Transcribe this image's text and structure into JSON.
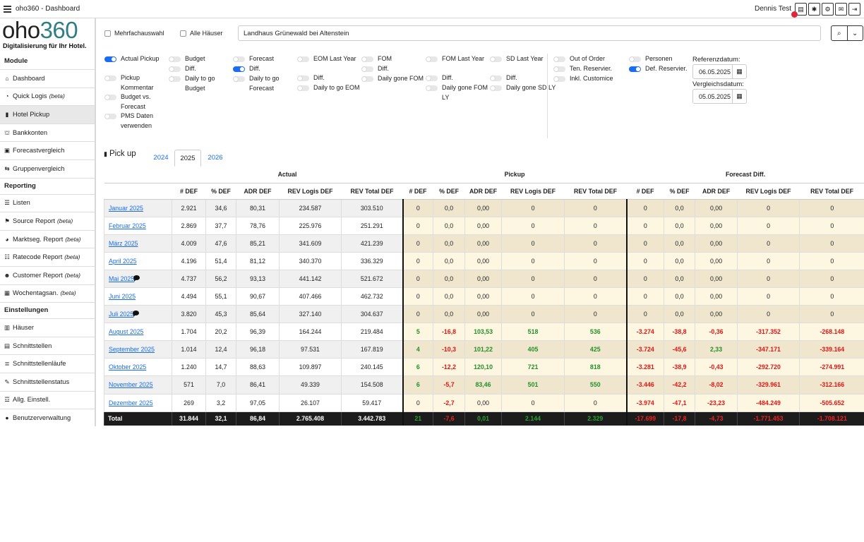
{
  "app": {
    "title": "oho360 - Dashboard",
    "user": "Dennis Test"
  },
  "logo": {
    "word_a": "oho",
    "word_b": "360",
    "tagline": "Digitalisierung für Ihr Hotel."
  },
  "sidebar": {
    "groups": [
      {
        "label": "Module",
        "items": [
          {
            "label": "Dashboard",
            "icon": "home-icon",
            "glyph": "⌂"
          },
          {
            "label": "Quick Logis",
            "beta": "(beta)",
            "icon": "speedometer-icon",
            "glyph": "◔"
          },
          {
            "label": "Hotel Pickup",
            "icon": "bar-chart-icon",
            "glyph": "▮",
            "active": true
          },
          {
            "label": "Bankkonten",
            "icon": "bank-icon",
            "glyph": "⛫"
          },
          {
            "label": "Forecastvergleich",
            "icon": "compare-icon",
            "glyph": "▣"
          },
          {
            "label": "Gruppenvergleich",
            "icon": "group-compare-icon",
            "glyph": "⇆"
          }
        ]
      },
      {
        "label": "Reporting",
        "items": [
          {
            "label": "Listen",
            "icon": "list-icon",
            "glyph": "☰"
          },
          {
            "label": "Source Report",
            "beta": "(beta)",
            "icon": "flag-icon",
            "glyph": "⚑"
          },
          {
            "label": "Marktseg. Report",
            "beta": "(beta)",
            "icon": "pie-icon",
            "glyph": "◕"
          },
          {
            "label": "Ratecode Report",
            "beta": "(beta)",
            "icon": "sliders-icon",
            "glyph": "☷"
          },
          {
            "label": "Customer Report",
            "beta": "(beta)",
            "icon": "customer-icon",
            "glyph": "☻"
          },
          {
            "label": "Wochentagsan.",
            "beta": "(beta)",
            "icon": "calendar-week-icon",
            "glyph": "▦"
          }
        ]
      },
      {
        "label": "Einstellungen",
        "items": [
          {
            "label": "Häuser",
            "icon": "building-icon",
            "glyph": "▥"
          },
          {
            "label": "Schnittstellen",
            "icon": "interfaces-icon",
            "glyph": "▤"
          },
          {
            "label": "Schnittstellenläufe",
            "icon": "stack-icon",
            "glyph": "≣"
          },
          {
            "label": "Schnittstellenstatus",
            "icon": "wrench-icon",
            "glyph": "✎"
          },
          {
            "label": "Allg. Einstell.",
            "icon": "settings-list-icon",
            "glyph": "☲"
          },
          {
            "label": "Benutzerverwaltung",
            "icon": "user-icon",
            "glyph": "●"
          }
        ]
      }
    ]
  },
  "filters": {
    "multi_select_label": "Mehrfachauswahl",
    "all_houses_label": "Alle Häuser",
    "hotel": "Landhaus Grünewald bei Altenstein"
  },
  "options": [
    {
      "label": "Actual Pickup",
      "on": true
    },
    {
      "label": "Pickup Kommentar",
      "on": false
    },
    {
      "label": "Budget vs. Forecast",
      "on": false
    },
    {
      "label": "PMS Daten verwenden",
      "on": false
    },
    {
      "label": "Budget",
      "on": false
    },
    {
      "label": "Diff.",
      "on": false
    },
    {
      "label": "Daily to go Budget",
      "on": false
    },
    {
      "label": "Forecast",
      "on": false
    },
    {
      "label": "Diff.",
      "on": true
    },
    {
      "label": "Daily to go Forecast",
      "on": false
    },
    {
      "label": "EOM Last Year",
      "on": false
    },
    {
      "label": "Diff.",
      "on": false
    },
    {
      "label": "Daily to go EOM",
      "on": false
    },
    {
      "label": "FOM",
      "on": false
    },
    {
      "label": "Diff.",
      "on": false
    },
    {
      "label": "Daily gone FOM",
      "on": false
    },
    {
      "label": "FOM Last Year",
      "on": false
    },
    {
      "label": "Diff.",
      "on": false
    },
    {
      "label": "Daily gone FOM LY",
      "on": false
    },
    {
      "label": "SD Last Year",
      "on": false
    },
    {
      "label": "Diff.",
      "on": false
    },
    {
      "label": "Daily gone SD LY",
      "on": false
    },
    {
      "label": "Out of Order",
      "on": false
    },
    {
      "label": "Ten. Reservier.",
      "on": false
    },
    {
      "label": "Inkl. Customice",
      "on": false
    },
    {
      "label": "Personen",
      "on": false
    },
    {
      "label": "Def. Reservier.",
      "on": true
    }
  ],
  "dates": {
    "ref_label": "Referenzdatum:",
    "ref_value": "06.05.2025",
    "cmp_label": "Vergleichsdatum:",
    "cmp_value": "05.05.2025"
  },
  "section": {
    "title": "Pick up",
    "tabs": [
      "2024",
      "2025",
      "2026"
    ],
    "active_tab": "2025"
  },
  "table": {
    "groups": [
      "Actual",
      "Pickup",
      "Forecast Diff."
    ],
    "columns": [
      "# DEF",
      "% DEF",
      "ADR DEF",
      "REV Logis DEF",
      "REV Total DEF"
    ],
    "rows": [
      {
        "month": "Januar 2025",
        "comment": false,
        "actual": [
          "2.921",
          "34,6",
          "80,31",
          "234.587",
          "303.510"
        ],
        "pickup": [
          "0",
          "0,0",
          "0,00",
          "0",
          "0"
        ],
        "fdiff": [
          "0",
          "0,0",
          "0,00",
          "0",
          "0"
        ]
      },
      {
        "month": "Februar 2025",
        "comment": false,
        "actual": [
          "2.869",
          "37,7",
          "78,76",
          "225.976",
          "251.291"
        ],
        "pickup": [
          "0",
          "0,0",
          "0,00",
          "0",
          "0"
        ],
        "fdiff": [
          "0",
          "0,0",
          "0,00",
          "0",
          "0"
        ]
      },
      {
        "month": "März 2025",
        "comment": false,
        "actual": [
          "4.009",
          "47,6",
          "85,21",
          "341.609",
          "421.239"
        ],
        "pickup": [
          "0",
          "0,0",
          "0,00",
          "0",
          "0"
        ],
        "fdiff": [
          "0",
          "0,0",
          "0,00",
          "0",
          "0"
        ]
      },
      {
        "month": "April 2025",
        "comment": false,
        "actual": [
          "4.196",
          "51,4",
          "81,12",
          "340.370",
          "336.329"
        ],
        "pickup": [
          "0",
          "0,0",
          "0,00",
          "0",
          "0"
        ],
        "fdiff": [
          "0",
          "0,0",
          "0,00",
          "0",
          "0"
        ]
      },
      {
        "month": "Mai 2025",
        "comment": true,
        "actual": [
          "4.737",
          "56,2",
          "93,13",
          "441.142",
          "521.672"
        ],
        "pickup": [
          "0",
          "0,0",
          "0,00",
          "0",
          "0"
        ],
        "fdiff": [
          "0",
          "0,0",
          "0,00",
          "0",
          "0"
        ]
      },
      {
        "month": "Juni 2025",
        "comment": false,
        "actual": [
          "4.494",
          "55,1",
          "90,67",
          "407.466",
          "462.732"
        ],
        "pickup": [
          "0",
          "0,0",
          "0,00",
          "0",
          "0"
        ],
        "fdiff": [
          "0",
          "0,0",
          "0,00",
          "0",
          "0"
        ]
      },
      {
        "month": "Juli 2025",
        "comment": true,
        "actual": [
          "3.820",
          "45,3",
          "85,64",
          "327.140",
          "304.637"
        ],
        "pickup": [
          "0",
          "0,0",
          "0,00",
          "0",
          "0"
        ],
        "fdiff": [
          "0",
          "0,0",
          "0,00",
          "0",
          "0"
        ]
      },
      {
        "month": "August 2025",
        "comment": false,
        "actual": [
          "1.704",
          "20,2",
          "96,39",
          "164.244",
          "219.484"
        ],
        "pickup": [
          "5",
          "-16,8",
          "103,53",
          "518",
          "536"
        ],
        "fdiff": [
          "-3.274",
          "-38,8",
          "-0,36",
          "-317.352",
          "-268.148"
        ]
      },
      {
        "month": "September 2025",
        "comment": false,
        "actual": [
          "1.014",
          "12,4",
          "96,18",
          "97.531",
          "167.819"
        ],
        "pickup": [
          "4",
          "-10,3",
          "101,22",
          "405",
          "425"
        ],
        "fdiff": [
          "-3.724",
          "-45,6",
          "2,33",
          "-347.171",
          "-339.164"
        ]
      },
      {
        "month": "Oktober 2025",
        "comment": false,
        "actual": [
          "1.240",
          "14,7",
          "88,63",
          "109.897",
          "240.145"
        ],
        "pickup": [
          "6",
          "-12,2",
          "120,10",
          "721",
          "818"
        ],
        "fdiff": [
          "-3.281",
          "-38,9",
          "-0,43",
          "-292.720",
          "-274.991"
        ]
      },
      {
        "month": "November 2025",
        "comment": false,
        "actual": [
          "571",
          "7,0",
          "86,41",
          "49.339",
          "154.508"
        ],
        "pickup": [
          "6",
          "-5,7",
          "83,46",
          "501",
          "550"
        ],
        "fdiff": [
          "-3.446",
          "-42,2",
          "-8,02",
          "-329.961",
          "-312.166"
        ]
      },
      {
        "month": "Dezember 2025",
        "comment": false,
        "actual": [
          "269",
          "3,2",
          "97,05",
          "26.107",
          "59.417"
        ],
        "pickup": [
          "0",
          "-2,7",
          "0,00",
          "0",
          "0"
        ],
        "fdiff": [
          "-3.974",
          "-47,1",
          "-23,23",
          "-484.249",
          "-505.652"
        ]
      }
    ],
    "total": {
      "label": "Total",
      "actual": [
        "31.844",
        "32,1",
        "86,84",
        "2.765.408",
        "3.442.783"
      ],
      "pickup": [
        "21",
        "-7,6",
        "0,01",
        "2.144",
        "2.329"
      ],
      "fdiff": [
        "-17.699",
        "-17,8",
        "-4,73",
        "-1.771.453",
        "-1.708.121"
      ]
    }
  },
  "colors": {
    "accent": "#1a6cf0",
    "positive": "#23902a",
    "negative": "#e01717",
    "notification": "#e0283a"
  }
}
